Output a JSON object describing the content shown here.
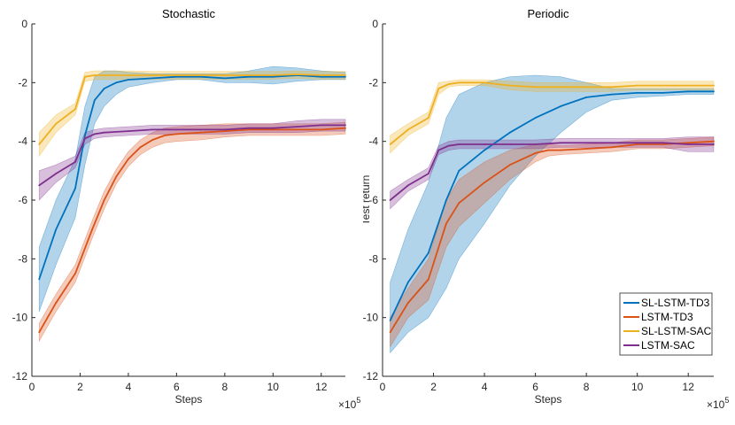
{
  "chart_data": [
    {
      "type": "line",
      "title": "Stochastic",
      "xlabel": "Steps",
      "ylabel": "",
      "x_exponent_label": "×10",
      "x_exponent": "5",
      "xlim": [
        0,
        13
      ],
      "ylim": [
        -12,
        0
      ],
      "xticks": [
        0,
        2,
        4,
        6,
        8,
        10,
        12
      ],
      "yticks": [
        0,
        -2,
        -4,
        -6,
        -8,
        -10,
        -12
      ],
      "series": [
        {
          "name": "SL-LSTM-TD3",
          "color": "#0072BD",
          "x": [
            0.3,
            1.0,
            1.8,
            2.2,
            2.6,
            3.0,
            3.5,
            4.0,
            5.0,
            6.0,
            7.0,
            8.0,
            9.0,
            10.0,
            11.0,
            12.0,
            13.0
          ],
          "y": [
            -8.7,
            -7.0,
            -5.6,
            -3.8,
            -2.6,
            -2.2,
            -2.0,
            -1.9,
            -1.85,
            -1.8,
            -1.8,
            -1.85,
            -1.8,
            -1.8,
            -1.75,
            -1.8,
            -1.8
          ],
          "band_upper": [
            -7.6,
            -6.0,
            -4.6,
            -2.8,
            -1.8,
            -1.6,
            -1.6,
            -1.65,
            -1.7,
            -1.7,
            -1.7,
            -1.7,
            -1.6,
            -1.45,
            -1.5,
            -1.6,
            -1.65
          ],
          "band_lower": [
            -9.8,
            -8.2,
            -6.6,
            -4.8,
            -3.4,
            -2.8,
            -2.4,
            -2.15,
            -2.0,
            -1.9,
            -1.9,
            -2.0,
            -2.0,
            -2.05,
            -1.95,
            -1.9,
            -1.9
          ]
        },
        {
          "name": "LSTM-TD3",
          "color": "#D95319",
          "x": [
            0.3,
            1.0,
            1.8,
            2.5,
            3.0,
            3.5,
            4.0,
            4.5,
            5.0,
            5.5,
            6.0,
            7.0,
            8.0,
            9.0,
            10.0,
            11.0,
            12.0,
            13.0
          ],
          "y": [
            -10.5,
            -9.5,
            -8.5,
            -7.0,
            -6.0,
            -5.2,
            -4.6,
            -4.2,
            -3.95,
            -3.8,
            -3.75,
            -3.7,
            -3.65,
            -3.6,
            -3.6,
            -3.6,
            -3.6,
            -3.55
          ],
          "band_upper": [
            -10.2,
            -9.2,
            -8.2,
            -6.7,
            -5.7,
            -4.95,
            -4.35,
            -3.95,
            -3.7,
            -3.55,
            -3.5,
            -3.45,
            -3.4,
            -3.4,
            -3.4,
            -3.4,
            -3.4,
            -3.35
          ],
          "band_lower": [
            -10.8,
            -9.8,
            -8.8,
            -7.3,
            -6.3,
            -5.45,
            -4.85,
            -4.45,
            -4.2,
            -4.05,
            -4.0,
            -3.95,
            -3.85,
            -3.8,
            -3.8,
            -3.8,
            -3.8,
            -3.75
          ]
        },
        {
          "name": "SL-LSTM-SAC",
          "color": "#EDB120",
          "x": [
            0.3,
            1.0,
            1.8,
            2.2,
            2.6,
            3.0,
            4.0,
            5.0,
            6.0,
            7.0,
            8.0,
            9.0,
            10.0,
            11.0,
            12.0,
            13.0
          ],
          "y": [
            -4.1,
            -3.4,
            -2.9,
            -1.8,
            -1.75,
            -1.75,
            -1.75,
            -1.75,
            -1.75,
            -1.75,
            -1.75,
            -1.75,
            -1.75,
            -1.72,
            -1.75,
            -1.75
          ],
          "band_upper": [
            -3.7,
            -3.1,
            -2.7,
            -1.65,
            -1.6,
            -1.6,
            -1.6,
            -1.62,
            -1.62,
            -1.62,
            -1.62,
            -1.62,
            -1.62,
            -1.6,
            -1.62,
            -1.62
          ],
          "band_lower": [
            -4.5,
            -3.7,
            -3.1,
            -1.95,
            -1.9,
            -1.9,
            -1.9,
            -1.88,
            -1.88,
            -1.88,
            -1.88,
            -1.88,
            -1.88,
            -1.85,
            -1.88,
            -1.88
          ]
        },
        {
          "name": "LSTM-SAC",
          "color": "#7E2F8E",
          "x": [
            0.3,
            1.0,
            1.8,
            2.2,
            2.6,
            3.0,
            4.0,
            5.0,
            6.0,
            7.0,
            8.0,
            9.0,
            10.0,
            11.0,
            12.0,
            13.0
          ],
          "y": [
            -5.5,
            -5.1,
            -4.7,
            -3.9,
            -3.75,
            -3.7,
            -3.65,
            -3.6,
            -3.6,
            -3.6,
            -3.6,
            -3.55,
            -3.55,
            -3.5,
            -3.45,
            -3.45
          ],
          "band_upper": [
            -5.0,
            -4.8,
            -4.5,
            -3.7,
            -3.6,
            -3.55,
            -3.5,
            -3.45,
            -3.45,
            -3.45,
            -3.45,
            -3.4,
            -3.4,
            -3.3,
            -3.25,
            -3.25
          ],
          "band_lower": [
            -6.0,
            -5.4,
            -4.9,
            -4.1,
            -3.9,
            -3.85,
            -3.8,
            -3.75,
            -3.75,
            -3.75,
            -3.75,
            -3.7,
            -3.7,
            -3.7,
            -3.65,
            -3.65
          ]
        }
      ]
    },
    {
      "type": "line",
      "title": "Periodic",
      "xlabel": "Steps",
      "ylabel": "Test return",
      "x_exponent_label": "×10",
      "x_exponent": "5",
      "xlim": [
        0,
        13
      ],
      "ylim": [
        -12,
        0
      ],
      "xticks": [
        0,
        2,
        4,
        6,
        8,
        10,
        12
      ],
      "yticks": [
        0,
        -2,
        -4,
        -6,
        -8,
        -10,
        -12
      ],
      "legend": {
        "location": "bottom-right",
        "entries": [
          "SL-LSTM-TD3",
          "LSTM-TD3",
          "SL-LSTM-SAC",
          "LSTM-SAC"
        ]
      },
      "series": [
        {
          "name": "SL-LSTM-TD3",
          "color": "#0072BD",
          "x": [
            0.3,
            1.0,
            1.8,
            2.5,
            3.0,
            4.0,
            5.0,
            6.0,
            7.0,
            8.0,
            9.0,
            10.0,
            11.0,
            12.0,
            13.0
          ],
          "y": [
            -10.1,
            -8.8,
            -7.8,
            -6.0,
            -5.0,
            -4.3,
            -3.7,
            -3.2,
            -2.8,
            -2.5,
            -2.4,
            -2.35,
            -2.35,
            -2.3,
            -2.3
          ],
          "band_upper": [
            -8.8,
            -7.0,
            -5.4,
            -3.2,
            -2.4,
            -2.0,
            -1.8,
            -1.75,
            -1.8,
            -2.0,
            -2.2,
            -2.2,
            -2.2,
            -2.2,
            -2.2
          ],
          "band_lower": [
            -11.2,
            -10.5,
            -10.0,
            -9.0,
            -8.0,
            -6.8,
            -5.5,
            -4.5,
            -3.7,
            -3.0,
            -2.6,
            -2.5,
            -2.45,
            -2.4,
            -2.4
          ]
        },
        {
          "name": "LSTM-TD3",
          "color": "#D95319",
          "x": [
            0.3,
            1.0,
            1.8,
            2.5,
            3.0,
            4.0,
            5.0,
            6.0,
            6.5,
            7.0,
            8.0,
            9.0,
            10.0,
            11.0,
            12.0,
            13.0
          ],
          "y": [
            -10.5,
            -9.5,
            -8.7,
            -6.8,
            -6.1,
            -5.4,
            -4.8,
            -4.4,
            -4.3,
            -4.3,
            -4.25,
            -4.2,
            -4.1,
            -4.1,
            -4.05,
            -4.0
          ],
          "band_upper": [
            -10.0,
            -9.0,
            -8.0,
            -6.0,
            -5.3,
            -4.7,
            -4.3,
            -4.1,
            -4.1,
            -4.15,
            -4.1,
            -4.05,
            -3.95,
            -3.95,
            -3.9,
            -3.85
          ],
          "band_lower": [
            -11.0,
            -10.0,
            -9.4,
            -7.6,
            -6.9,
            -6.1,
            -5.3,
            -4.7,
            -4.5,
            -4.45,
            -4.4,
            -4.35,
            -4.25,
            -4.25,
            -4.2,
            -4.15
          ]
        },
        {
          "name": "SL-LSTM-SAC",
          "color": "#EDB120",
          "x": [
            0.3,
            1.0,
            1.8,
            2.2,
            2.6,
            3.0,
            4.0,
            5.0,
            6.0,
            7.0,
            8.0,
            9.0,
            10.0,
            11.0,
            12.0,
            13.0
          ],
          "y": [
            -4.1,
            -3.6,
            -3.2,
            -2.2,
            -2.05,
            -2.0,
            -2.0,
            -2.1,
            -2.15,
            -2.15,
            -2.15,
            -2.15,
            -2.1,
            -2.1,
            -2.1,
            -2.1
          ],
          "band_upper": [
            -3.8,
            -3.4,
            -3.0,
            -2.0,
            -1.95,
            -1.9,
            -1.9,
            -1.95,
            -2.0,
            -2.0,
            -2.0,
            -2.0,
            -1.95,
            -1.95,
            -1.95,
            -1.95
          ],
          "band_lower": [
            -4.4,
            -3.8,
            -3.4,
            -2.4,
            -2.15,
            -2.1,
            -2.1,
            -2.25,
            -2.3,
            -2.3,
            -2.3,
            -2.3,
            -2.25,
            -2.25,
            -2.25,
            -2.25
          ]
        },
        {
          "name": "LSTM-SAC",
          "color": "#7E2F8E",
          "x": [
            0.3,
            1.0,
            1.8,
            2.2,
            2.6,
            3.0,
            4.0,
            5.0,
            6.0,
            7.0,
            8.0,
            9.0,
            10.0,
            11.0,
            12.0,
            13.0
          ],
          "y": [
            -6.0,
            -5.5,
            -5.1,
            -4.3,
            -4.15,
            -4.1,
            -4.1,
            -4.1,
            -4.1,
            -4.05,
            -4.05,
            -4.05,
            -4.05,
            -4.05,
            -4.1,
            -4.1
          ],
          "band_upper": [
            -5.7,
            -5.3,
            -4.9,
            -4.15,
            -4.0,
            -3.95,
            -3.95,
            -3.95,
            -3.95,
            -3.9,
            -3.9,
            -3.9,
            -3.9,
            -3.9,
            -3.85,
            -3.85
          ],
          "band_lower": [
            -6.3,
            -5.7,
            -5.3,
            -4.45,
            -4.3,
            -4.25,
            -4.25,
            -4.25,
            -4.25,
            -4.2,
            -4.2,
            -4.2,
            -4.2,
            -4.2,
            -4.35,
            -4.35
          ]
        }
      ]
    }
  ]
}
